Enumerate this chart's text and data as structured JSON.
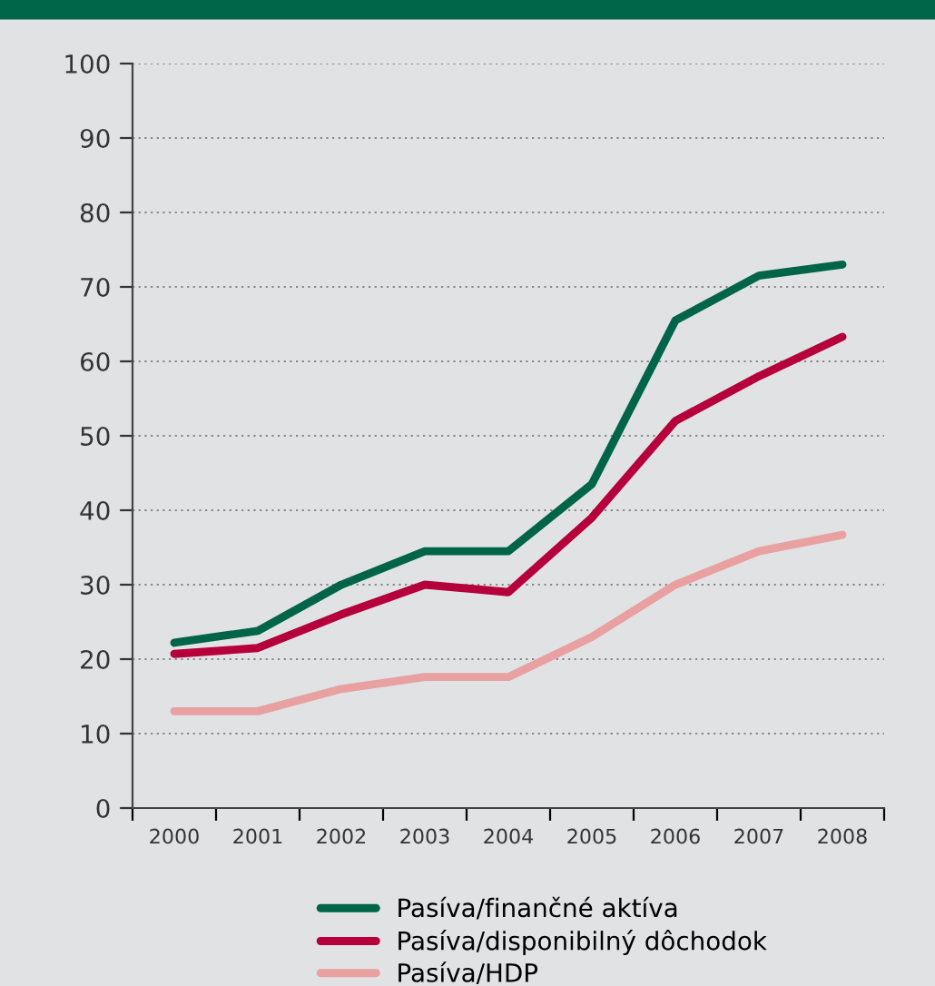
{
  "chart_data": {
    "type": "line",
    "categories": [
      "2000",
      "2001",
      "2002",
      "2003",
      "2004",
      "2005",
      "2006",
      "2007",
      "2008"
    ],
    "series": [
      {
        "name": "Pasíva/finančné aktíva",
        "color": "#006548",
        "values": [
          22.2,
          23.8,
          30,
          34.5,
          34.5,
          43.5,
          65.5,
          71.5,
          73
        ]
      },
      {
        "name": "Pasíva/disponibilný dôchodok",
        "color": "#b5003c",
        "values": [
          20.7,
          21.5,
          26,
          30,
          29,
          39,
          52,
          58,
          63.3
        ]
      },
      {
        "name": "Pasíva/HDP",
        "color": "#e8a0a0",
        "values": [
          13,
          13,
          16,
          17.6,
          17.6,
          23,
          30,
          34.5,
          36.7
        ]
      }
    ],
    "ylim": [
      0,
      100
    ],
    "yticks": [
      0,
      10,
      20,
      30,
      40,
      50,
      60,
      70,
      80,
      90,
      100
    ],
    "grid": "y",
    "legend": "bottom",
    "marker": "none",
    "line_style": "solid"
  }
}
